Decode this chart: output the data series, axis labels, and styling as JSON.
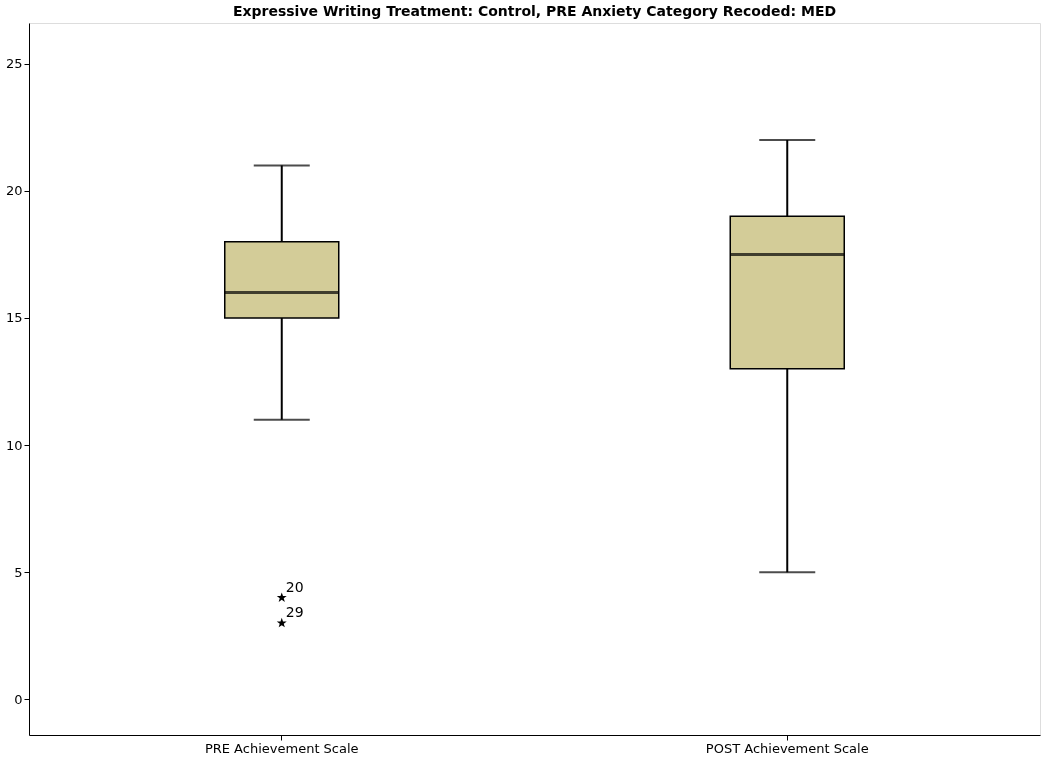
{
  "chart_data": {
    "type": "box",
    "title": "Expressive Writing Treatment: Control, PRE Anxiety Category Recoded: MED",
    "categories": [
      "PRE Achievement Scale",
      "POST Achievement Scale"
    ],
    "boxes": [
      {
        "low": 11,
        "q1": 15,
        "median": 16,
        "q3": 18,
        "high": 21,
        "outliers": [
          4,
          3
        ]
      },
      {
        "low": 5,
        "q1": 13,
        "median": 17.5,
        "q3": 19,
        "high": 22
      }
    ],
    "color": "#d3cc98",
    "marker": "star",
    "grid": false,
    "ylim": [
      -1.4,
      26.6
    ],
    "yticks": [
      0,
      5,
      10,
      15,
      20,
      25
    ],
    "annotations": [
      "20",
      "29"
    ]
  }
}
